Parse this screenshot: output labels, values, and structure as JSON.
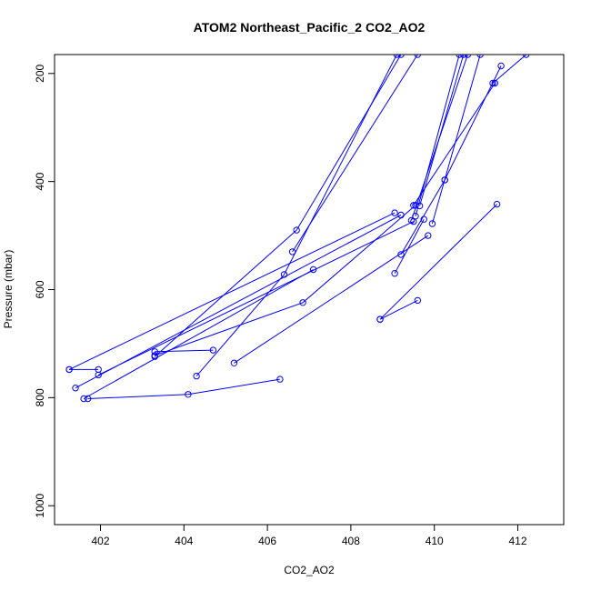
{
  "chart_data": {
    "type": "line",
    "title": "ATOM2 Northeast_Pacific_2 CO2_AO2",
    "xlabel": "CO2_AO2",
    "ylabel": "Pressure (mbar)",
    "xlim": [
      400.9,
      413.1
    ],
    "ylim": [
      1035,
      165
    ],
    "y_reversed": true,
    "grid": false,
    "x_ticks": [
      402,
      404,
      406,
      408,
      410,
      412
    ],
    "y_ticks": [
      200,
      400,
      600,
      800,
      1000
    ],
    "color": "#0000ff",
    "marker": "open-circle",
    "series": [
      {
        "points": [
          [
            401.25,
            748
          ],
          [
            401.95,
            748
          ]
        ]
      },
      {
        "points": [
          [
            401.25,
            748
          ],
          [
            409.05,
            458
          ]
        ]
      },
      {
        "points": [
          [
            401.4,
            782
          ],
          [
            409.2,
            462
          ]
        ]
      },
      {
        "points": [
          [
            401.95,
            758
          ],
          [
            409.5,
            474
          ]
        ]
      },
      {
        "points": [
          [
            401.6,
            802
          ],
          [
            407.1,
            563
          ]
        ]
      },
      {
        "points": [
          [
            401.7,
            802
          ],
          [
            404.1,
            794
          ],
          [
            406.3,
            766
          ]
        ]
      },
      {
        "points": [
          [
            403.3,
            715
          ],
          [
            404.7,
            712
          ]
        ]
      },
      {
        "points": [
          [
            403.3,
            724
          ],
          [
            406.7,
            490
          ],
          [
            409.2,
            165
          ]
        ]
      },
      {
        "points": [
          [
            403.3,
            722
          ],
          [
            406.85,
            624
          ],
          [
            409.55,
            444
          ]
        ]
      },
      {
        "points": [
          [
            404.3,
            760
          ],
          [
            406.4,
            572
          ],
          [
            409.1,
            165
          ]
        ]
      },
      {
        "points": [
          [
            405.2,
            736
          ],
          [
            409.85,
            500
          ]
        ]
      },
      {
        "points": [
          [
            406.6,
            530
          ],
          [
            409.6,
            165
          ]
        ]
      },
      {
        "points": [
          [
            408.7,
            655
          ],
          [
            409.6,
            620
          ]
        ]
      },
      {
        "points": [
          [
            408.7,
            655
          ],
          [
            411.5,
            442
          ]
        ]
      },
      {
        "points": [
          [
            409.05,
            570
          ],
          [
            409.75,
            470
          ]
        ]
      },
      {
        "points": [
          [
            409.2,
            535
          ],
          [
            410.25,
            397
          ]
        ]
      },
      {
        "points": [
          [
            409.45,
            472
          ],
          [
            410.8,
            165
          ]
        ]
      },
      {
        "points": [
          [
            409.55,
            464
          ],
          [
            410.6,
            165
          ]
        ]
      },
      {
        "points": [
          [
            409.65,
            445
          ],
          [
            410.7,
            165
          ]
        ]
      },
      {
        "points": [
          [
            409.95,
            478
          ],
          [
            411.1,
            165
          ]
        ]
      },
      {
        "points": [
          [
            409.5,
            444
          ],
          [
            411.45,
            218
          ]
        ]
      },
      {
        "points": [
          [
            410.25,
            397
          ],
          [
            411.6,
            186
          ]
        ]
      },
      {
        "points": [
          [
            411.4,
            218
          ],
          [
            412.2,
            165
          ]
        ]
      }
    ]
  }
}
